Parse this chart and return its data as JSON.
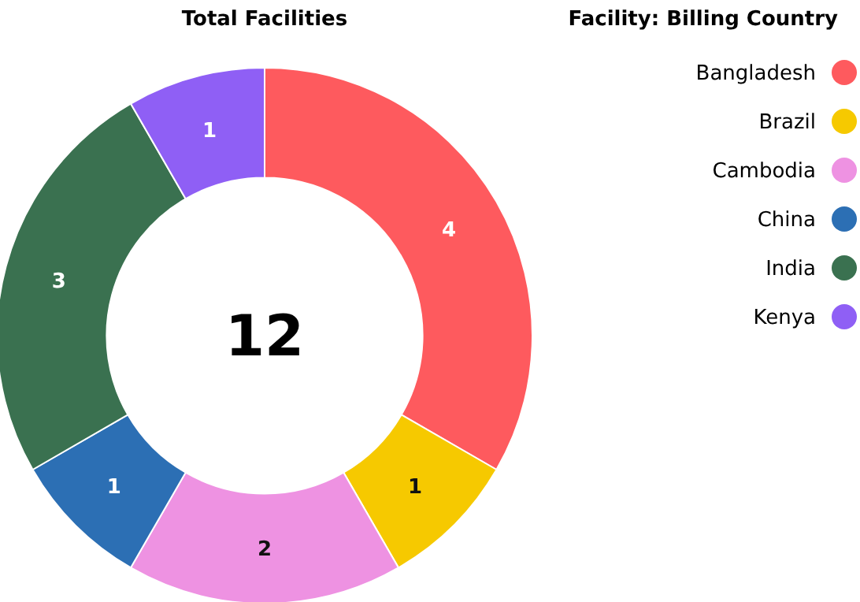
{
  "chart_data": {
    "type": "donut",
    "title": "Total Facilities",
    "legend_title": "Facility: Billing Country",
    "categories": [
      "Bangladesh",
      "Brazil",
      "Cambodia",
      "China",
      "India",
      "Kenya"
    ],
    "values": [
      4,
      1,
      2,
      1,
      3,
      1
    ],
    "colors": [
      "#fe5a5e",
      "#f6c900",
      "#ee92e2",
      "#2c6fb4",
      "#3a7150",
      "#8f5ff5"
    ],
    "data_labels": true,
    "legend": "right",
    "annotations": [
      "12"
    ]
  }
}
